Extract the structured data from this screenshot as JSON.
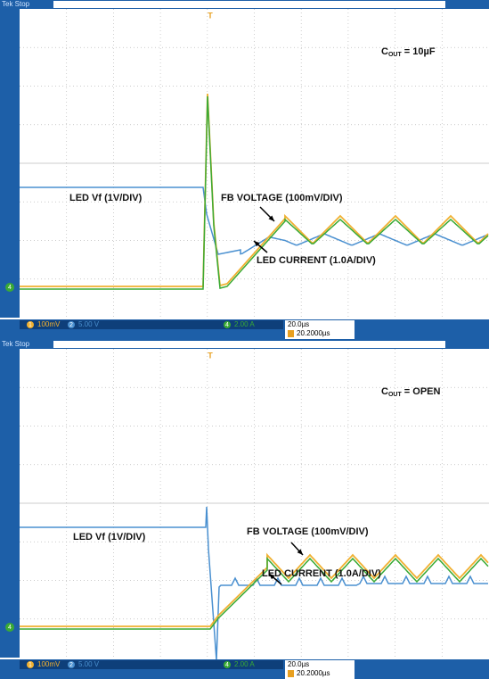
{
  "panels": [
    {
      "header": "Tek Stop",
      "trigger": "T",
      "cout": {
        "main": "C",
        "sub": "OUT",
        "rest": " = 10µF"
      },
      "labels": {
        "vf": "LED Vf (1V/DIV)",
        "fb": "FB VOLTAGE (100mV/DIV)",
        "current": "LED CURRENT (1.0A/DIV)"
      },
      "channel_marker": "4",
      "status": {
        "ch1": {
          "num": "1",
          "scale": "100mV"
        },
        "ch2": {
          "num": "2",
          "scale": "5.00 V"
        },
        "ch4": {
          "num": "4",
          "scale": "2.00 A"
        },
        "timebase": "20.0µs",
        "trigger_pos": "20.2000µs"
      }
    },
    {
      "header": "Tek Stop",
      "trigger": "T",
      "cout": {
        "main": "C",
        "sub": "OUT",
        "rest": " = OPEN"
      },
      "labels": {
        "vf": "LED Vf (1V/DIV)",
        "fb": "FB VOLTAGE (100mV/DIV)",
        "current": "LED CURRENT (1.0A/DIV)"
      },
      "channel_marker": "4",
      "status": {
        "ch1": {
          "num": "1",
          "scale": "100mV"
        },
        "ch2": {
          "num": "2",
          "scale": "5.00 V"
        },
        "ch4": {
          "num": "4",
          "scale": "2.00 A"
        },
        "timebase": "20.0µs",
        "trigger_pos": "20.2000µs"
      }
    }
  ]
}
